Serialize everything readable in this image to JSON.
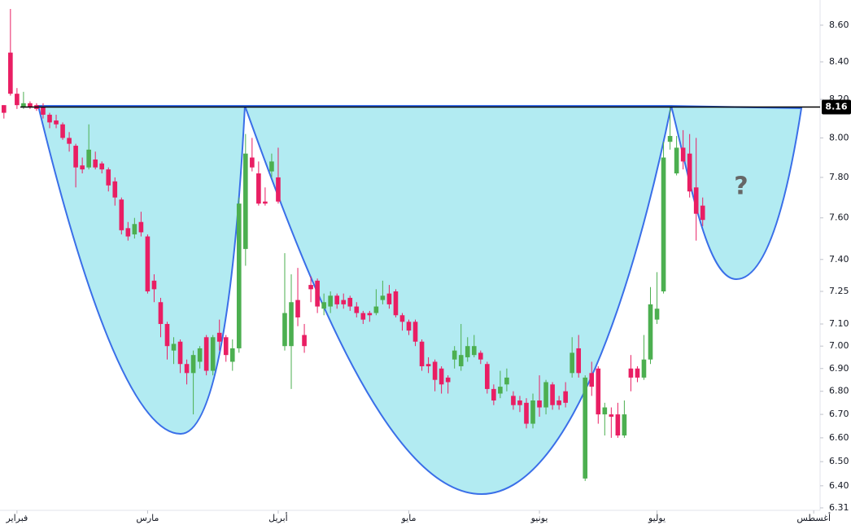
{
  "chart_data": {
    "type": "candlestick",
    "log_scale": true,
    "up_color": "#4caf50",
    "down_color": "#e91e63",
    "xlim": [
      -0.6,
      124.6
    ],
    "xticks": [
      {
        "value": 2,
        "label": "فبراير"
      },
      {
        "value": 22,
        "label": "مارس"
      },
      {
        "value": 42,
        "label": "أبريل"
      },
      {
        "value": 62,
        "label": "مايو"
      },
      {
        "value": 82,
        "label": "يونيو"
      },
      {
        "value": 100,
        "label": "يوليو"
      },
      {
        "value": 124,
        "label": "أغسطس"
      }
    ],
    "ylim": [
      6.3,
      8.74
    ],
    "yticks": [
      {
        "value": 6.31,
        "label": "6.31"
      },
      {
        "value": 6.4,
        "label": "6.40"
      },
      {
        "value": 6.5,
        "label": "6.50"
      },
      {
        "value": 6.6,
        "label": "6.60"
      },
      {
        "value": 6.7,
        "label": "6.70"
      },
      {
        "value": 6.8,
        "label": "6.80"
      },
      {
        "value": 6.9,
        "label": "6.90"
      },
      {
        "value": 7,
        "label": "7.00"
      },
      {
        "value": 7.1,
        "label": "7.10"
      },
      {
        "value": 7.25,
        "label": "7.25"
      },
      {
        "value": 7.4,
        "label": "7.40"
      },
      {
        "value": 7.6,
        "label": "7.60"
      },
      {
        "value": 7.8,
        "label": "7.80"
      },
      {
        "value": 8,
        "label": "8.00"
      },
      {
        "value": 8.2,
        "label": "8.20"
      },
      {
        "value": 8.4,
        "label": "8.40"
      },
      {
        "value": 8.6,
        "label": "8.60"
      }
    ],
    "price_line": {
      "value": 8.16,
      "label": "8.16",
      "color": "#000000"
    },
    "annotation": "?",
    "open": [
      8.17,
      8.45,
      8.23,
      8.16,
      8.18,
      8.17,
      8.16,
      8.12,
      8.09,
      8.07,
      8.0,
      7.96,
      7.86,
      7.85,
      7.89,
      7.87,
      7.84,
      7.78,
      7.69,
      7.55,
      7.52,
      7.58,
      7.51,
      7.3,
      7.2,
      7.1,
      6.98,
      7.02,
      6.92,
      6.88,
      6.93,
      7.04,
      6.89,
      7.06,
      7.04,
      6.93,
      6.99,
      7.45,
      7.9,
      7.82,
      7.68,
      7.83,
      7.8,
      7.0,
      7.0,
      7.21,
      7.05,
      7.28,
      7.3,
      7.17,
      7.18,
      7.23,
      7.21,
      7.22,
      7.18,
      7.15,
      7.15,
      7.15,
      7.21,
      7.24,
      7.25,
      7.14,
      7.11,
      7.11,
      7.02,
      6.92,
      6.93,
      6.9,
      6.86,
      6.94,
      6.91,
      6.95,
      6.96,
      6.97,
      6.92,
      6.81,
      6.79,
      6.83,
      6.78,
      6.76,
      6.75,
      6.66,
      6.76,
      6.73,
      6.83,
      6.76,
      6.8,
      6.88,
      6.99,
      6.43,
      6.88,
      6.9,
      6.7,
      6.7,
      6.7,
      6.61,
      6.9,
      6.9,
      6.86,
      6.94,
      7.12,
      7.25,
      7.98,
      7.82,
      7.95,
      7.92,
      7.75,
      7.66
    ],
    "high": [
      8.17,
      8.69,
      8.26,
      8.24,
      8.19,
      8.18,
      8.18,
      8.13,
      8.12,
      8.08,
      8.03,
      7.97,
      7.9,
      8.07,
      7.93,
      7.88,
      7.85,
      7.8,
      7.7,
      7.58,
      7.6,
      7.63,
      7.52,
      7.33,
      7.22,
      7.11,
      7.04,
      7.03,
      6.94,
      6.98,
      7.0,
      7.05,
      7.05,
      7.12,
      7.05,
      7.03,
      7.7,
      8.02,
      8.0,
      7.88,
      7.75,
      7.92,
      7.95,
      7.43,
      7.33,
      7.36,
      7.1,
      7.32,
      7.31,
      7.24,
      7.25,
      7.24,
      7.24,
      7.23,
      7.2,
      7.16,
      7.16,
      7.26,
      7.3,
      7.28,
      7.26,
      7.15,
      7.12,
      7.12,
      7.03,
      6.95,
      6.94,
      6.91,
      6.87,
      7.0,
      7.1,
      7.04,
      7.05,
      6.98,
      6.93,
      6.83,
      6.89,
      6.9,
      6.8,
      6.78,
      6.77,
      6.79,
      6.87,
      6.85,
      6.84,
      6.78,
      6.84,
      7.04,
      7.05,
      6.87,
      6.93,
      6.91,
      6.75,
      6.73,
      6.75,
      6.76,
      6.96,
      6.91,
      7.05,
      7.27,
      7.34,
      7.98,
      8.16,
      8.01,
      8.04,
      8.02,
      8.0,
      7.7
    ],
    "low": [
      8.1,
      8.22,
      8.15,
      8.15,
      8.15,
      8.14,
      8.1,
      8.05,
      8.05,
      7.99,
      7.93,
      7.75,
      7.82,
      7.84,
      7.84,
      7.82,
      7.73,
      7.66,
      7.52,
      7.49,
      7.5,
      7.51,
      7.24,
      7.2,
      7.04,
      6.94,
      6.92,
      6.88,
      6.83,
      6.7,
      6.9,
      6.87,
      6.87,
      6.98,
      6.93,
      6.89,
      6.97,
      7.37,
      7.83,
      7.66,
      7.66,
      7.8,
      7.67,
      6.98,
      6.81,
      7.09,
      6.97,
      7.2,
      7.15,
      7.14,
      7.15,
      7.17,
      7.17,
      7.16,
      7.13,
      7.1,
      7.11,
      7.14,
      7.19,
      7.17,
      7.13,
      7.07,
      7.05,
      7.0,
      6.89,
      6.88,
      6.8,
      6.79,
      6.79,
      6.9,
      6.89,
      6.93,
      6.95,
      6.92,
      6.79,
      6.74,
      6.77,
      6.8,
      6.72,
      6.71,
      6.64,
      6.64,
      6.69,
      6.7,
      6.72,
      6.72,
      6.73,
      6.86,
      6.86,
      6.42,
      6.78,
      6.66,
      6.61,
      6.6,
      6.6,
      6.6,
      6.8,
      6.84,
      6.85,
      6.92,
      7.1,
      7.24,
      7.94,
      7.81,
      7.84,
      7.7,
      7.49,
      7.56
    ],
    "close": [
      8.13,
      8.23,
      8.17,
      8.18,
      8.16,
      8.15,
      8.12,
      8.08,
      8.07,
      8.0,
      7.97,
      7.85,
      7.84,
      7.94,
      7.85,
      7.84,
      7.76,
      7.7,
      7.54,
      7.51,
      7.57,
      7.53,
      7.25,
      7.26,
      7.1,
      7.0,
      7.01,
      6.92,
      6.88,
      6.96,
      6.99,
      6.89,
      7.04,
      7.02,
      6.96,
      6.99,
      7.67,
      7.92,
      7.85,
      7.67,
      7.67,
      7.88,
      7.68,
      7.15,
      7.2,
      7.13,
      7.0,
      7.26,
      7.18,
      7.2,
      7.23,
      7.19,
      7.19,
      7.18,
      7.15,
      7.12,
      7.14,
      7.18,
      7.23,
      7.19,
      7.14,
      7.11,
      7.07,
      7.02,
      6.91,
      6.91,
      6.85,
      6.83,
      6.84,
      6.98,
      6.96,
      7.0,
      7.0,
      6.94,
      6.81,
      6.76,
      6.82,
      6.86,
      6.74,
      6.74,
      6.66,
      6.76,
      6.73,
      6.84,
      6.74,
      6.74,
      6.75,
      6.97,
      6.88,
      6.86,
      6.82,
      6.7,
      6.73,
      6.69,
      6.61,
      6.7,
      6.86,
      6.86,
      6.94,
      7.19,
      7.17,
      7.9,
      8.01,
      7.95,
      7.88,
      7.73,
      7.62,
      7.59
    ]
  }
}
